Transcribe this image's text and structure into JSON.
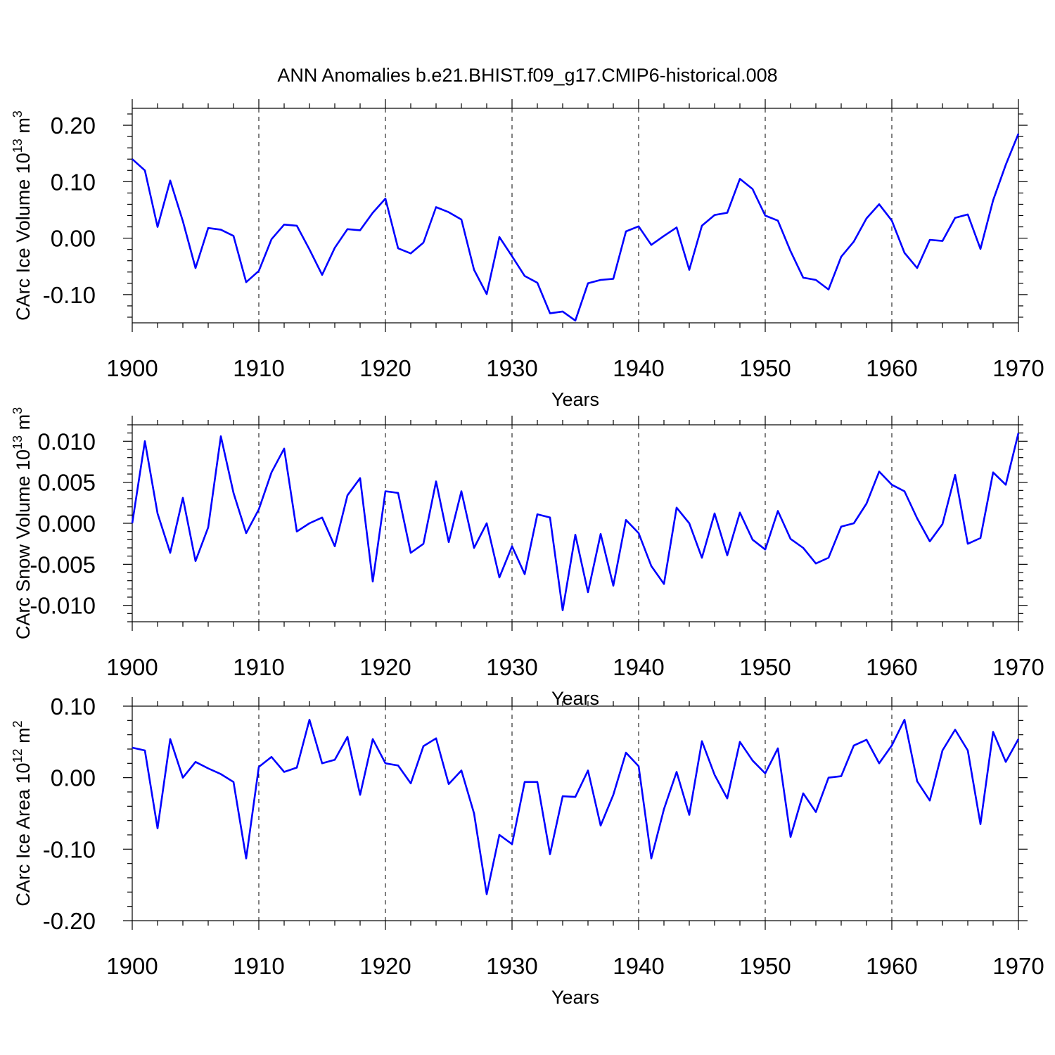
{
  "chart_data": {
    "type": "line",
    "title": "ANN Anomalies b.e21.BHIST.f09_g17.CMIP6-historical.008",
    "x": [
      1900,
      1901,
      1902,
      1903,
      1904,
      1905,
      1906,
      1907,
      1908,
      1909,
      1910,
      1911,
      1912,
      1913,
      1914,
      1915,
      1916,
      1917,
      1918,
      1919,
      1920,
      1921,
      1922,
      1923,
      1924,
      1925,
      1926,
      1927,
      1928,
      1929,
      1930,
      1931,
      1932,
      1933,
      1934,
      1935,
      1936,
      1937,
      1938,
      1939,
      1940,
      1941,
      1942,
      1943,
      1944,
      1945,
      1946,
      1947,
      1948,
      1949,
      1950,
      1951,
      1952,
      1953,
      1954,
      1955,
      1956,
      1957,
      1958,
      1959,
      1960,
      1961,
      1962,
      1963,
      1964,
      1965,
      1966,
      1967,
      1968,
      1969,
      1970
    ],
    "series_color": "#0000ff",
    "panels": [
      {
        "name": "ice-volume",
        "ylabel_main": "CArc Ice Volume 10",
        "ylabel_exp": "13",
        "ylabel_unit": " m",
        "ylabel_unit_exp": "3",
        "xlabel": "Years",
        "ylim": [
          -0.15,
          0.23
        ],
        "xlim": [
          1900,
          1970
        ],
        "yticks": [
          0.2,
          0.1,
          0.0,
          -0.1
        ],
        "ytick_labels": [
          "0.20",
          "0.10",
          "0.00",
          "-0.10"
        ],
        "xticks": [
          1900,
          1910,
          1920,
          1930,
          1940,
          1950,
          1960,
          1970
        ],
        "xtick_labels": [
          "1900",
          "1910",
          "1920",
          "1930",
          "1940",
          "1950",
          "1960",
          "1970"
        ],
        "values": [
          0.14,
          0.12,
          0.02,
          0.102,
          0.03,
          -0.053,
          0.018,
          0.015,
          0.004,
          -0.078,
          -0.058,
          -0.002,
          0.024,
          0.022,
          -0.02,
          -0.065,
          -0.017,
          0.016,
          0.014,
          0.045,
          0.07,
          -0.018,
          -0.027,
          -0.008,
          0.055,
          0.046,
          0.033,
          -0.056,
          -0.099,
          0.002,
          -0.032,
          -0.067,
          -0.079,
          -0.133,
          -0.13,
          -0.146,
          -0.08,
          -0.074,
          -0.072,
          0.012,
          0.021,
          -0.012,
          0.004,
          0.019,
          -0.056,
          0.022,
          0.041,
          0.045,
          0.105,
          0.087,
          0.04,
          0.031,
          -0.023,
          -0.07,
          -0.074,
          -0.091,
          -0.033,
          -0.006,
          0.035,
          0.06,
          0.031,
          -0.026,
          -0.053,
          -0.003,
          -0.005,
          0.036,
          0.042,
          -0.019,
          0.067,
          0.13,
          0.185
        ]
      },
      {
        "name": "snow-volume",
        "ylabel_main": "CArc Snow Volume 10",
        "ylabel_exp": "13",
        "ylabel_unit": " m",
        "ylabel_unit_exp": "3",
        "xlabel": "Years",
        "ylim": [
          -0.012,
          0.012
        ],
        "xlim": [
          1900,
          1970
        ],
        "yticks": [
          0.01,
          0.005,
          0.0,
          -0.005,
          -0.01
        ],
        "ytick_labels": [
          "0.010",
          "0.005",
          "0.000",
          "-0.005",
          "-0.010"
        ],
        "xticks": [
          1900,
          1910,
          1920,
          1930,
          1940,
          1950,
          1960,
          1970
        ],
        "xtick_labels": [
          "1900",
          "1910",
          "1920",
          "1930",
          "1940",
          "1950",
          "1960",
          "1970"
        ],
        "values": [
          0.0,
          0.01,
          0.0012,
          -0.0036,
          0.0031,
          -0.0046,
          -0.0005,
          0.0106,
          0.0037,
          -0.0012,
          0.0017,
          0.0062,
          0.0091,
          -0.001,
          0.0,
          0.0007,
          -0.0028,
          0.0034,
          0.0055,
          -0.0071,
          0.0039,
          0.0037,
          -0.0036,
          -0.0025,
          0.0051,
          -0.0023,
          0.0039,
          -0.003,
          0.0,
          -0.0066,
          -0.0028,
          -0.0062,
          0.0011,
          0.0007,
          -0.0106,
          -0.0014,
          -0.0084,
          -0.0013,
          -0.0076,
          0.0004,
          -0.0012,
          -0.0052,
          -0.0074,
          0.0019,
          0.0,
          -0.0042,
          0.0012,
          -0.0039,
          0.0013,
          -0.002,
          -0.0032,
          0.0015,
          -0.0019,
          -0.003,
          -0.0049,
          -0.0042,
          -0.0004,
          0.0,
          0.0024,
          0.0063,
          0.0047,
          0.0039,
          0.0006,
          -0.0022,
          -0.0001,
          0.0059,
          -0.0025,
          -0.0018,
          0.0062,
          0.0047,
          0.011
        ]
      },
      {
        "name": "ice-area",
        "ylabel_main": "CArc Ice Area 10",
        "ylabel_exp": "12",
        "ylabel_unit": " m",
        "ylabel_unit_exp": "2",
        "xlabel": "Years",
        "ylim": [
          -0.2,
          0.1
        ],
        "xlim": [
          1900,
          1970
        ],
        "yticks": [
          0.1,
          0.0,
          -0.1,
          -0.2
        ],
        "ytick_labels": [
          "0.10",
          "0.00",
          "-0.10",
          "-0.20"
        ],
        "xticks": [
          1900,
          1910,
          1920,
          1930,
          1940,
          1950,
          1960,
          1970
        ],
        "xtick_labels": [
          "1900",
          "1910",
          "1920",
          "1930",
          "1940",
          "1950",
          "1960",
          "1970"
        ],
        "values": [
          0.042,
          0.038,
          -0.071,
          0.054,
          0.0,
          0.022,
          0.013,
          0.005,
          -0.006,
          -0.113,
          0.015,
          0.029,
          0.008,
          0.014,
          0.081,
          0.02,
          0.025,
          0.057,
          -0.024,
          0.054,
          0.02,
          0.017,
          -0.008,
          0.044,
          0.055,
          -0.009,
          0.01,
          -0.05,
          -0.163,
          -0.08,
          -0.093,
          -0.006,
          -0.006,
          -0.107,
          -0.026,
          -0.027,
          0.01,
          -0.067,
          -0.024,
          0.035,
          0.016,
          -0.113,
          -0.044,
          0.008,
          -0.052,
          0.051,
          0.004,
          -0.029,
          0.05,
          0.024,
          0.006,
          0.041,
          -0.083,
          -0.022,
          -0.048,
          0.0,
          0.002,
          0.045,
          0.053,
          0.02,
          0.045,
          0.081,
          -0.005,
          -0.032,
          0.038,
          0.067,
          0.038,
          -0.065,
          0.064,
          0.022,
          0.054
        ]
      }
    ]
  }
}
